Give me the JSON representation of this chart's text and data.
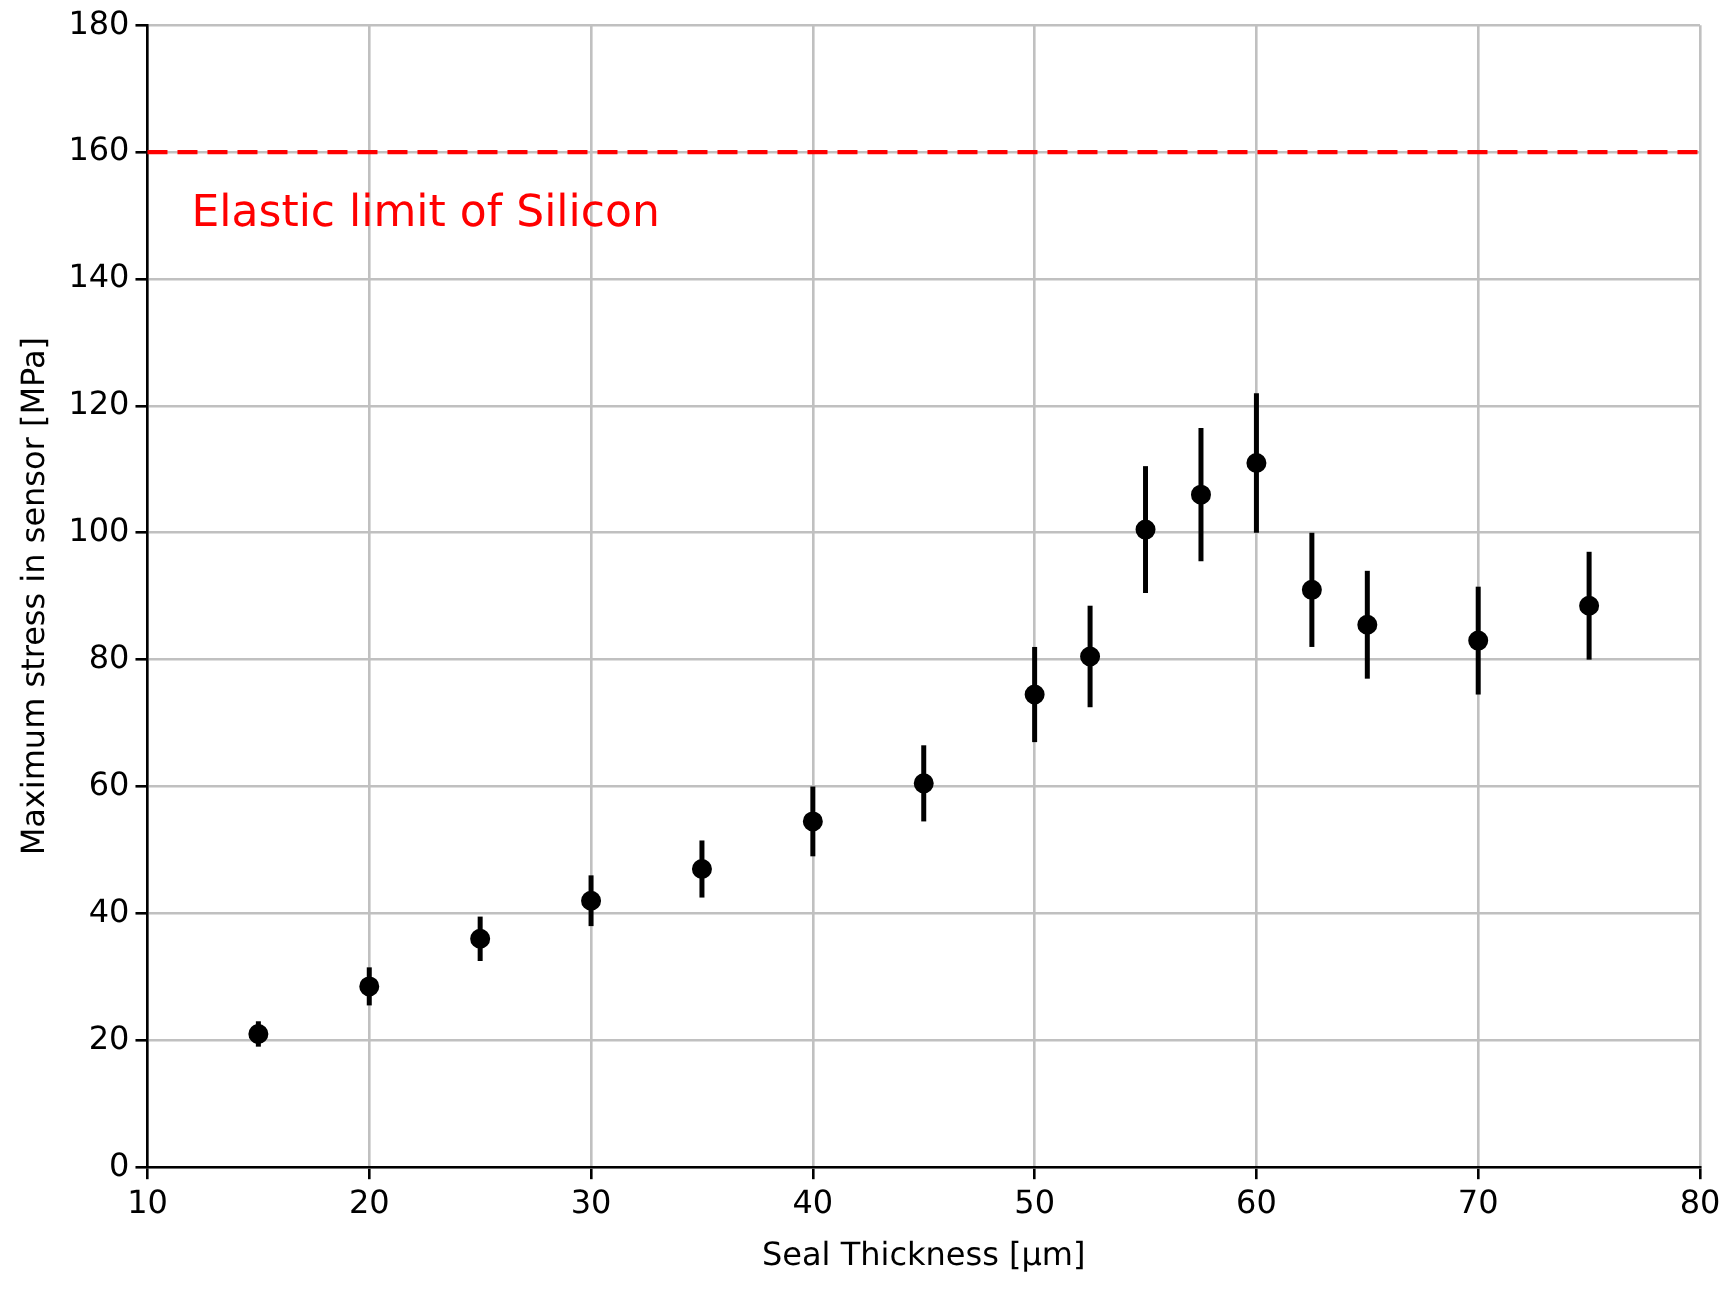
{
  "chart_data": {
    "type": "scatter",
    "xlabel": "Seal Thickness [μm]",
    "ylabel": "Maximum stress in sensor [MPa]",
    "x": [
      15,
      20,
      25,
      30,
      35,
      40,
      45,
      50,
      52.5,
      55,
      57.5,
      60,
      62.5,
      65,
      70,
      75
    ],
    "series": [
      {
        "color": "#000000",
        "values": [
          21,
          28.5,
          36,
          42,
          47,
          54.5,
          60.5,
          74.5,
          80.5,
          100.5,
          106,
          111,
          91,
          85.5,
          83,
          88.5
        ],
        "errors": [
          2,
          3,
          3.5,
          4,
          4.5,
          5.5,
          6,
          7.5,
          8,
          10,
          10.5,
          11,
          9,
          8.5,
          8.5,
          8.5
        ]
      }
    ],
    "xlim": [
      10,
      80
    ],
    "xticks": [
      10,
      20,
      30,
      40,
      50,
      60,
      70,
      80
    ],
    "ylim": [
      0,
      180
    ],
    "yticks": [
      0,
      20,
      40,
      60,
      80,
      100,
      120,
      140,
      160,
      180
    ],
    "ref_lines": [
      {
        "axis": "y",
        "value": 160,
        "label": "Elastic limit of Silicon",
        "color": "#ff0000",
        "line_style": "dashed"
      }
    ],
    "grid": true,
    "legend": false,
    "marker": "circle"
  }
}
